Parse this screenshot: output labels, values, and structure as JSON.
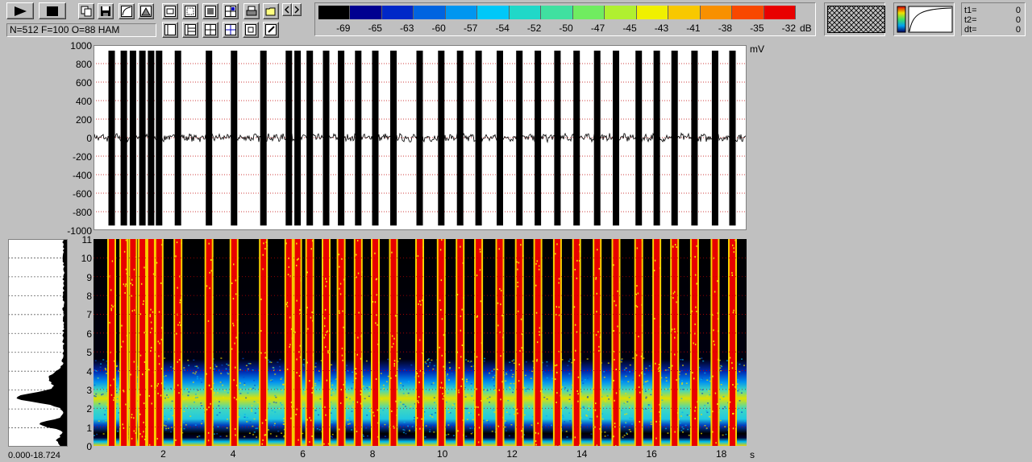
{
  "toolbar": {
    "buttons": [
      {
        "name": "play-button",
        "icon": "play-icon"
      },
      {
        "name": "stop-button",
        "icon": "stop-icon"
      },
      {
        "name": "copy-button",
        "icon": "copy-icon"
      },
      {
        "name": "save-button",
        "icon": "disk-icon"
      },
      {
        "name": "curve-view-button",
        "icon": "curve-icon"
      },
      {
        "name": "triangle-view-button",
        "icon": "triangle-icon"
      },
      {
        "name": "frame-button",
        "icon": "frame-icon"
      },
      {
        "name": "filmstrip-button",
        "icon": "filmstrip-icon"
      },
      {
        "name": "select-area-button",
        "icon": "select-icon"
      },
      {
        "name": "zoom-grid-button",
        "icon": "grid-icon"
      },
      {
        "name": "print-button",
        "icon": "printer-icon"
      },
      {
        "name": "open-button",
        "icon": "folder-icon"
      },
      {
        "name": "scroll-left-button",
        "icon": "chevron-left-icon"
      },
      {
        "name": "scroll-right-button",
        "icon": "chevron-right-icon"
      },
      {
        "name": "window-button",
        "icon": "window-icon"
      },
      {
        "name": "list-button",
        "icon": "list-icon"
      },
      {
        "name": "cross-grid-button",
        "icon": "cross-grid-icon"
      },
      {
        "name": "cursor-grid-button",
        "icon": "cursor-grid-icon"
      },
      {
        "name": "frame-small-button",
        "icon": "frame-small-icon"
      },
      {
        "name": "edit-button",
        "icon": "edit-icon"
      }
    ],
    "status": "N=512 F=100 O=88 HAM"
  },
  "colorbar": {
    "ticks": [
      "-69",
      "-65",
      "-63",
      "-60",
      "-57",
      "-54",
      "-52",
      "-50",
      "-47",
      "-45",
      "-43",
      "-41",
      "-38",
      "-35",
      "-32"
    ],
    "unit": "dB",
    "colors": [
      "#000000",
      "#000090",
      "#0028c8",
      "#0064e0",
      "#0096f0",
      "#00c8f8",
      "#20d8c8",
      "#40e0a0",
      "#70ec60",
      "#b0f030",
      "#f0f000",
      "#f8c800",
      "#f89000",
      "#f84800",
      "#e80000"
    ]
  },
  "readout": {
    "t1_label": "t1=",
    "t1_value": "0",
    "t2_label": "t2=",
    "t2_value": "0",
    "dt_label": "dt=",
    "dt_value": "0"
  },
  "waveform": {
    "unit": "mV",
    "y_ticks": [
      "1000",
      "800",
      "600",
      "400",
      "200",
      "0",
      "-200",
      "-400",
      "-600",
      "-800",
      "-1000"
    ],
    "ylim": [
      -1000,
      1000
    ]
  },
  "spectrogram": {
    "y_ticks": [
      "11",
      "10",
      "9",
      "8",
      "7",
      "6",
      "5",
      "4",
      "3",
      "2",
      "1",
      "0"
    ],
    "x_ticks": [
      "2",
      "4",
      "6",
      "8",
      "10",
      "12",
      "14",
      "16",
      "18"
    ],
    "x_unit": "s",
    "range_label": "0.000-18.724",
    "xlim": [
      0,
      18.724
    ],
    "ylim": [
      0,
      11
    ]
  },
  "chart_data": {
    "type": "line",
    "xlabel": "s",
    "ylabel": "mV",
    "xlim": [
      0,
      18.724
    ],
    "ylim": [
      -1000,
      1000
    ],
    "burst_times_s": [
      0.52,
      0.87,
      1.13,
      1.4,
      1.65,
      1.88,
      2.42,
      3.31,
      4.03,
      4.87,
      5.6,
      5.85,
      6.2,
      6.67,
      7.1,
      7.59,
      8.08,
      8.6,
      9.35,
      9.97,
      10.51,
      11.04,
      11.65,
      12.21,
      12.74,
      13.3,
      13.85,
      14.44,
      14.98,
      15.63,
      16.15,
      16.66,
      17.23,
      17.82,
      18.32
    ]
  }
}
